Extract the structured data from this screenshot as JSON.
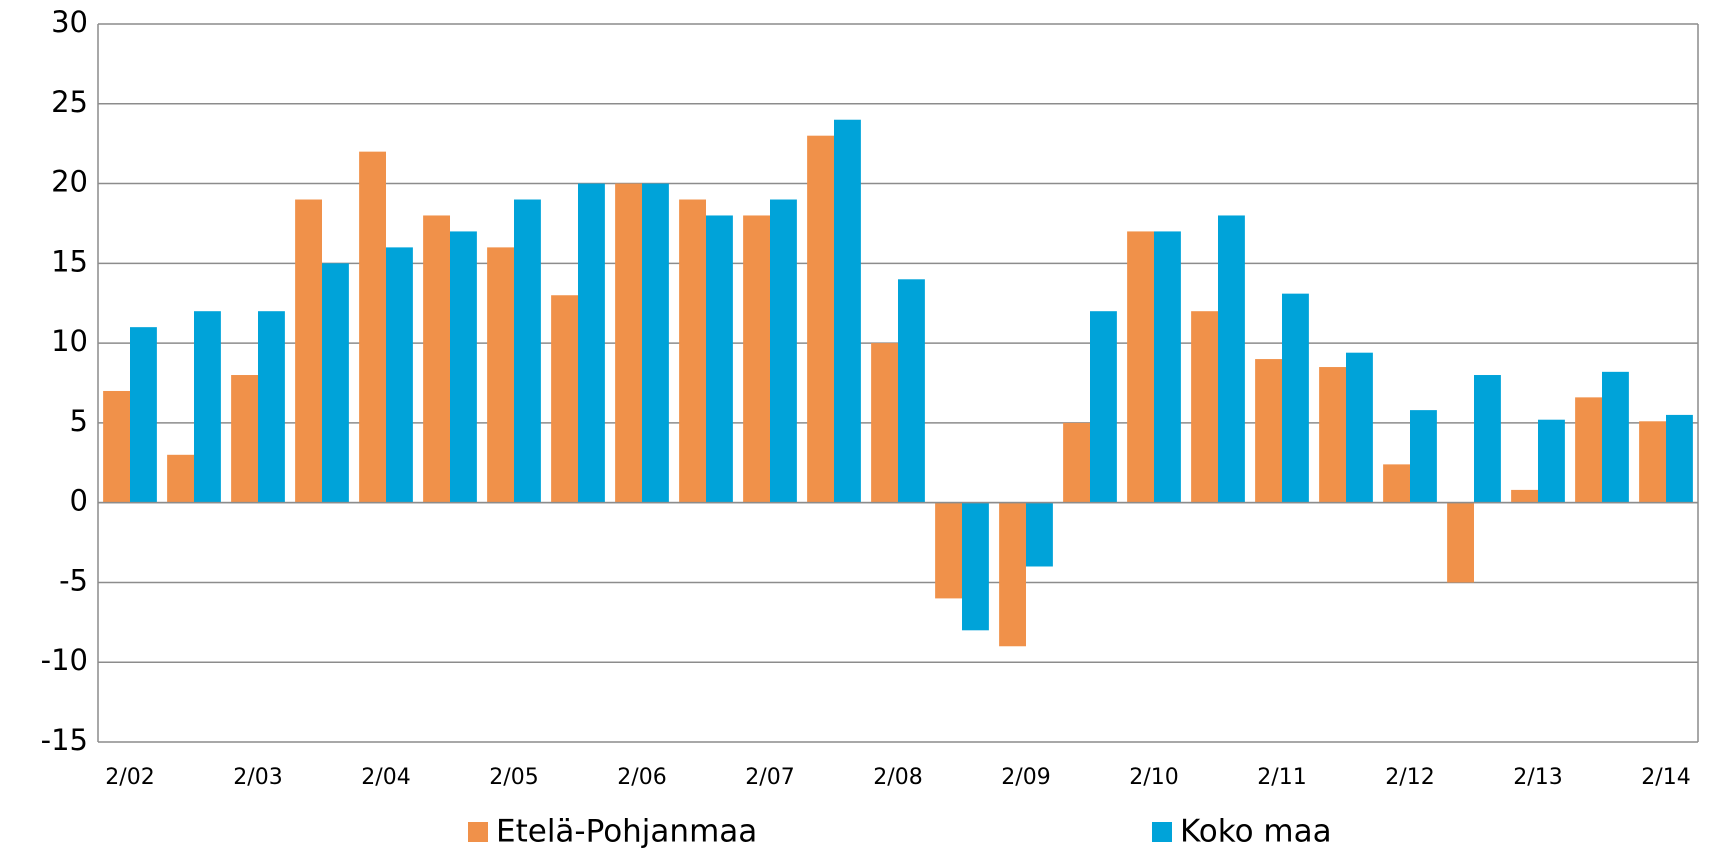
{
  "chart_data": {
    "type": "bar",
    "categories": [
      "2/02",
      null,
      "2/03",
      null,
      "2/04",
      null,
      "2/05",
      null,
      "2/06",
      null,
      "2/07",
      null,
      "2/08",
      null,
      "2/09",
      null,
      "2/10",
      null,
      "2/11",
      null,
      "2/12",
      null,
      "2/13",
      null,
      "2/14"
    ],
    "series": [
      {
        "name": "Etelä-Pohjanmaa",
        "color": "#f0914a",
        "values": [
          7,
          3,
          8,
          19,
          22,
          18,
          16,
          13,
          20,
          19,
          18,
          23,
          10,
          -6,
          -9,
          5,
          17,
          12,
          9,
          8.5,
          2.4,
          -5,
          0.8,
          6.6,
          5.1
        ]
      },
      {
        "name": "Koko maa",
        "color": "#00a3d9",
        "values": [
          11,
          12,
          12,
          15,
          16,
          17,
          19,
          20,
          20,
          18,
          19,
          24,
          14,
          -8,
          -4,
          12,
          17,
          18,
          13.1,
          9.4,
          5.8,
          8,
          5.2,
          8.2,
          5.5
        ]
      }
    ],
    "ylim": [
      -15,
      30
    ],
    "yticks": [
      -15,
      -10,
      -5,
      0,
      5,
      10,
      15,
      20,
      25,
      30
    ],
    "grid": true,
    "legend": "bottom"
  }
}
